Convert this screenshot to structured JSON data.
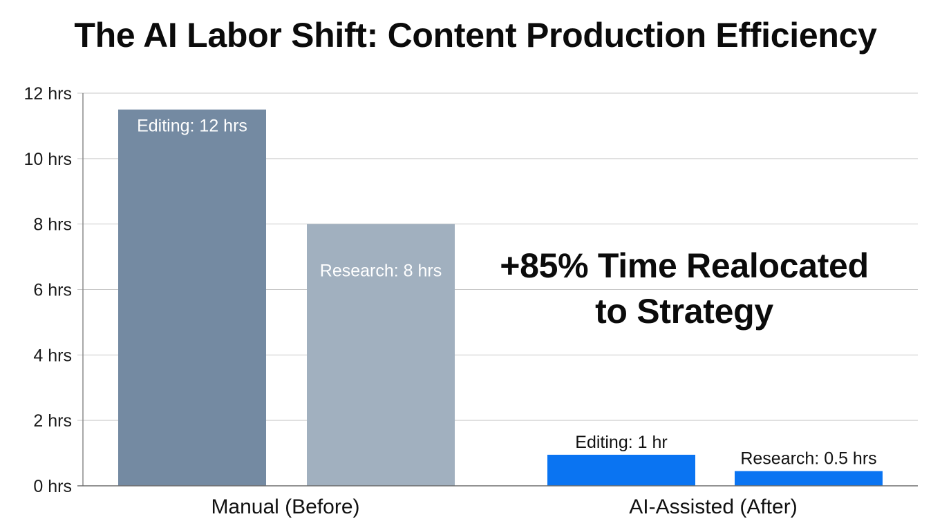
{
  "chart_data": {
    "type": "bar",
    "title": "The AI Labor Shift: Content Production Efficiency",
    "xlabel": "",
    "ylabel": "",
    "ylim": [
      0,
      12
    ],
    "yticks": [
      0,
      2,
      4,
      6,
      8,
      10,
      12
    ],
    "ytick_labels": [
      "0 hrs",
      "2 hrs",
      "4 hrs",
      "6 hrs",
      "8 hrs",
      "10 hrs",
      "12 hrs"
    ],
    "grid": true,
    "categories": [
      "Manual (Before)",
      "AI-Assisted (After)"
    ],
    "bars": [
      {
        "group": "Manual (Before)",
        "label": "Editing: 12 hrs",
        "value": 11.5,
        "color": "#748aa2",
        "label_inside": true
      },
      {
        "group": "Manual (Before)",
        "label": "Research: 8 hrs",
        "value": 8,
        "color": "#a1b0bf",
        "label_inside": true
      },
      {
        "group": "AI-Assisted (After)",
        "label": "Editing: 1 hr",
        "value": 0.95,
        "color": "#0a74f2",
        "label_inside": false
      },
      {
        "group": "AI-Assisted (After)",
        "label": "Research: 0.5 hrs",
        "value": 0.45,
        "color": "#0a74f2",
        "label_inside": false
      }
    ],
    "annotation": {
      "line1": "+85% Time Realocated",
      "line2": "to Strategy"
    }
  }
}
